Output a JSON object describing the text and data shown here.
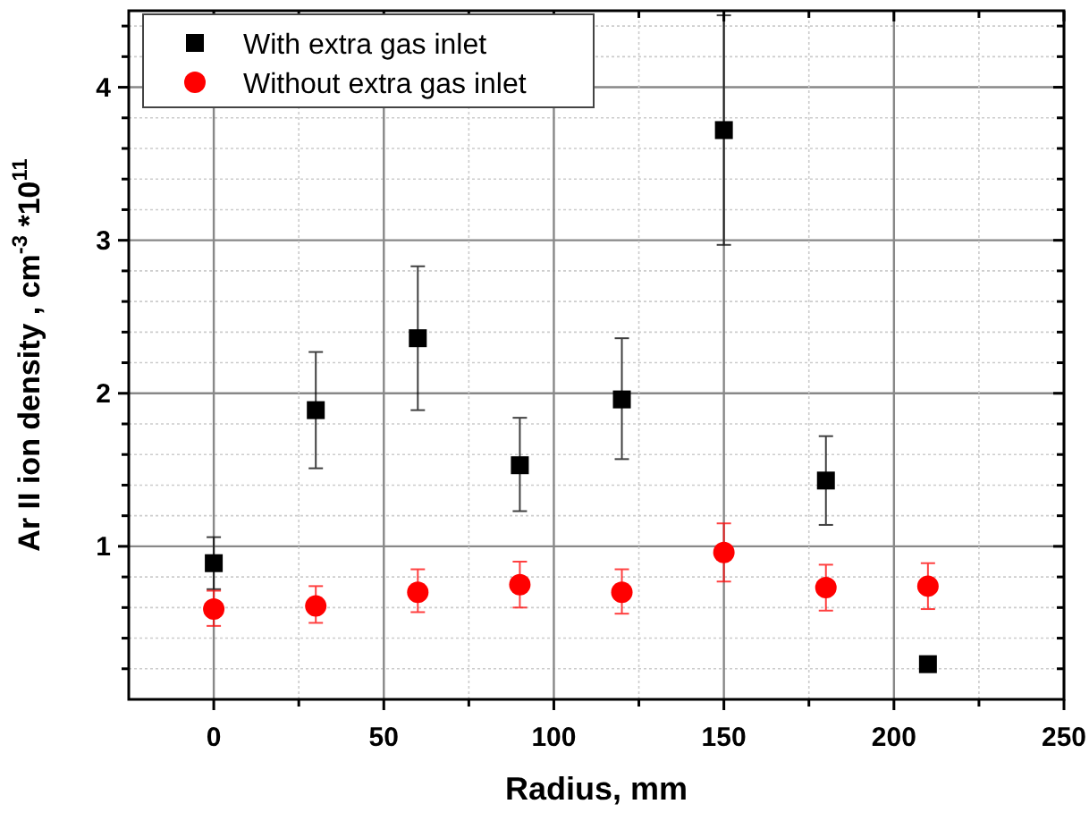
{
  "chart_data": {
    "type": "scatter",
    "xlabel": "Radius, mm",
    "ylabel": "Ar II ion density , cm$^{-3}$ *10$^{11}$",
    "x": [
      0,
      30,
      60,
      90,
      120,
      150,
      180,
      210
    ],
    "series": [
      {
        "name": "With extra gas inlet",
        "color": "#000000",
        "marker": "square",
        "values": [
          0.89,
          1.89,
          2.36,
          1.53,
          1.96,
          3.72,
          1.43,
          0.23
        ],
        "errors": [
          [
            0.72,
            1.06
          ],
          [
            1.51,
            2.27
          ],
          [
            1.89,
            2.83
          ],
          [
            1.23,
            1.84
          ],
          [
            1.57,
            2.36
          ],
          [
            2.97,
            4.47
          ],
          [
            1.14,
            1.72
          ],
          null
        ]
      },
      {
        "name": "Without extra gas inlet",
        "color": "#ff0000",
        "marker": "circle",
        "values": [
          0.59,
          0.61,
          0.7,
          0.75,
          0.7,
          0.96,
          0.73,
          0.74
        ],
        "errors": [
          [
            0.48,
            0.71
          ],
          [
            0.5,
            0.74
          ],
          [
            0.57,
            0.85
          ],
          [
            0.6,
            0.9
          ],
          [
            0.56,
            0.85
          ],
          [
            0.77,
            1.15
          ],
          [
            0.58,
            0.88
          ],
          [
            0.59,
            0.89
          ]
        ]
      }
    ],
    "xlim": [
      -25,
      250
    ],
    "xticks": [
      0,
      {
        "value": 25,
        "label": null
      },
      50,
      {
        "value": 75,
        "label": null
      },
      100,
      {
        "value": 125,
        "label": null
      },
      150,
      {
        "value": 175,
        "label": null
      },
      200,
      {
        "value": 225,
        "label": null
      },
      250
    ],
    "ylim": [
      0,
      4.5
    ],
    "yticks": [
      {
        "value": 0.2,
        "label": null
      },
      {
        "value": 0.4,
        "label": null
      },
      {
        "value": 0.6,
        "label": null
      },
      {
        "value": 0.8,
        "label": null
      },
      1,
      {
        "value": 1.2,
        "label": null
      },
      {
        "value": 1.4,
        "label": null
      },
      {
        "value": 1.6,
        "label": null
      },
      {
        "value": 1.8,
        "label": null
      },
      2,
      {
        "value": 2.2,
        "label": null
      },
      {
        "value": 2.4,
        "label": null
      },
      {
        "value": 2.6,
        "label": null
      },
      {
        "value": 2.8,
        "label": null
      },
      3,
      {
        "value": 3.2,
        "label": null
      },
      {
        "value": 3.4,
        "label": null
      },
      {
        "value": 3.6,
        "label": null
      },
      {
        "value": 3.8,
        "label": null
      },
      4,
      {
        "value": 4.2,
        "label": null
      },
      {
        "value": 4.4,
        "label": null
      }
    ],
    "grid": true,
    "legend": "top left"
  }
}
